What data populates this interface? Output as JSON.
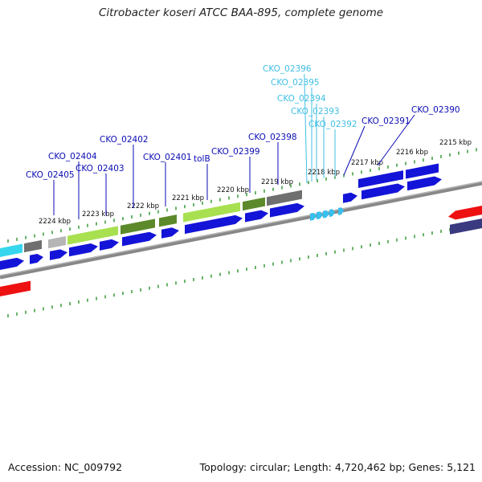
{
  "title": "Citrobacter koseri ATCC BAA-895, complete genome",
  "accession": "Accession: NC_009792",
  "summary": "Topology: circular; Length: 4,720,462 bp; Genes: 5,121",
  "colors": {
    "label_blue": "#0b0bb4",
    "label_cyan": "#41bfe3",
    "cds_blue": "#1414d8",
    "tick_green": "#1a8a1a",
    "backbone": "#888888",
    "rrna_cyan": "#36d7ee",
    "trna_arrow": "#38bfee",
    "red": "#ee1111",
    "gray_block": "#6f6f6f",
    "lime": "#a8e050",
    "olive": "#5c8a2a",
    "navy": "#3a3a80"
  },
  "kbp_labels": [
    "2224 kbp",
    "2223 kbp",
    "2222 kbp",
    "2221 kbp",
    "2220 kbp",
    "2219 kbp",
    "2218 kbp",
    "2217 kbp",
    "2216 kbp",
    "2215 kbp"
  ],
  "gene_labels": [
    {
      "text": "CKO_02396",
      "color": "cyan"
    },
    {
      "text": "CKO_02395",
      "color": "cyan"
    },
    {
      "text": "CKO_02394",
      "color": "cyan"
    },
    {
      "text": "CKO_02393",
      "color": "cyan"
    },
    {
      "text": "CKO_02392",
      "color": "cyan"
    },
    {
      "text": "CKO_02390",
      "color": "blue"
    },
    {
      "text": "CKO_02391",
      "color": "blue"
    },
    {
      "text": "CKO_02402",
      "color": "blue"
    },
    {
      "text": "CKO_02398",
      "color": "blue"
    },
    {
      "text": "CKO_02404",
      "color": "blue"
    },
    {
      "text": "CKO_02401",
      "color": "blue"
    },
    {
      "text": "tolB",
      "color": "blue"
    },
    {
      "text": "CKO_02399",
      "color": "blue"
    },
    {
      "text": "CKO_02403",
      "color": "blue"
    },
    {
      "text": "CKO_02405",
      "color": "blue"
    }
  ]
}
